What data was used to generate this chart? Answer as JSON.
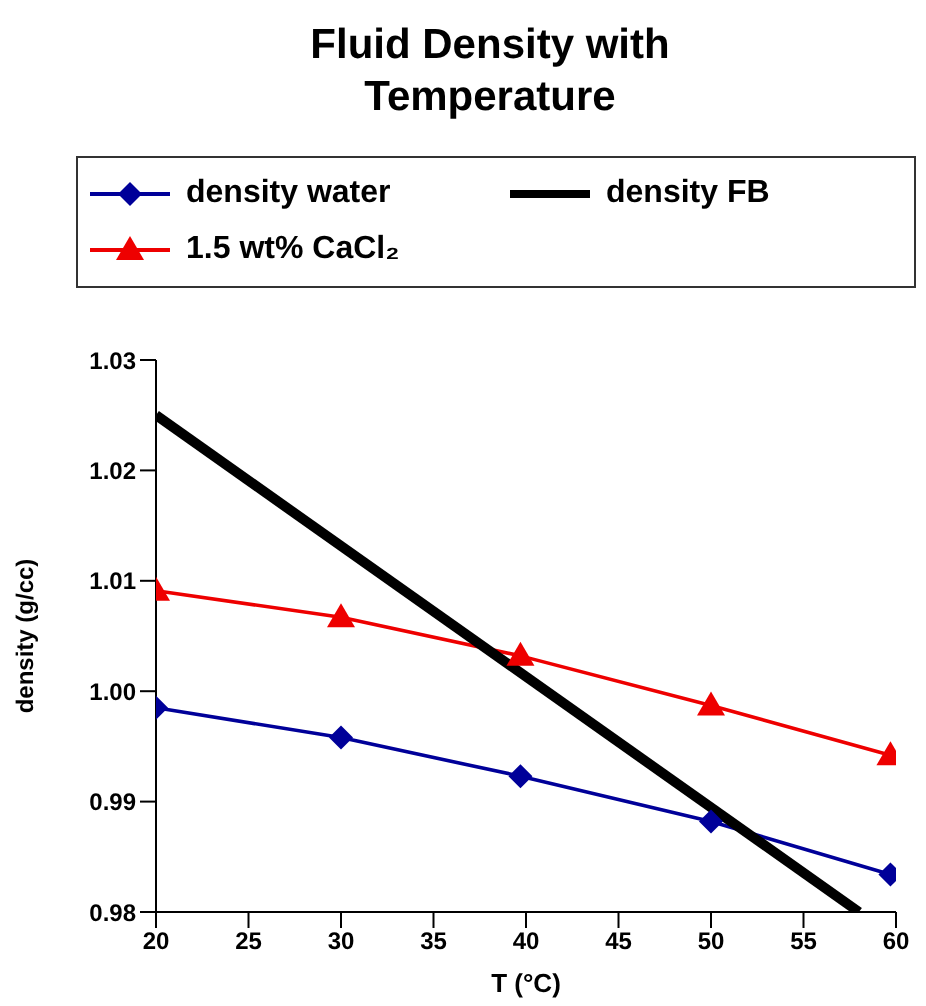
{
  "chart_data": {
    "type": "line",
    "title": "Fluid Density with Temperature",
    "xlabel": "T (°C)",
    "ylabel": "density (g/cc)",
    "xlim": [
      20,
      60
    ],
    "xticks": [
      20,
      25,
      30,
      35,
      40,
      45,
      50,
      55,
      60
    ],
    "ylim": [
      0.98,
      1.03
    ],
    "yticks": [
      0.98,
      0.99,
      {
        "value": 1,
        "label": "1.00"
      },
      1.01,
      1.02,
      1.03
    ],
    "legend": "top",
    "line_style": "solid",
    "series": [
      {
        "name": "density water",
        "color": "#000099",
        "marker": "diamond",
        "x": [
          20,
          30,
          39.7,
          50,
          59.7
        ],
        "values": [
          0.9985,
          0.9958,
          0.9923,
          0.9882,
          0.9834
        ]
      },
      {
        "name": "1.5 wt% CaCl₂",
        "color": "#ee0000",
        "marker": "triangle",
        "x": [
          20,
          30,
          39.7,
          50,
          59.7
        ],
        "values": [
          1.0091,
          1.0067,
          1.0032,
          0.9987,
          0.9942
        ]
      },
      {
        "name": "density FB",
        "color": "#000000",
        "marker": "none",
        "x": [
          20,
          58
        ],
        "values": [
          1.025,
          0.98
        ]
      }
    ]
  }
}
